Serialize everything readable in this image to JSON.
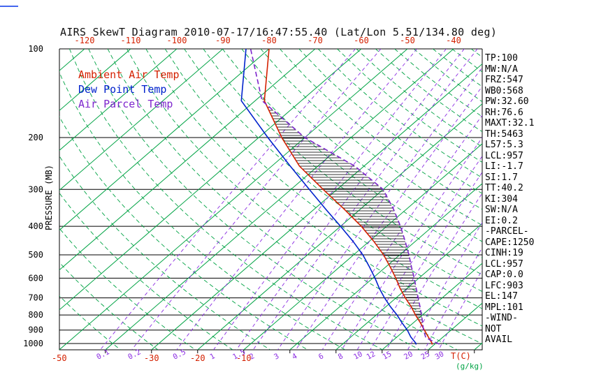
{
  "title": "AIRS SkewT Diagram 2010-07-17/16:47:55.40 (Lat/Lon 5.51/134.80 deg)",
  "legend": [
    {
      "label": "Ambient Air Temp",
      "color": "#d42000"
    },
    {
      "label": "Dew Point Temp",
      "color": "#0022cc"
    },
    {
      "label": "Air Parcel Temp",
      "color": "#7d26cd"
    }
  ],
  "axes": {
    "pressure_label": "PRESSURE (MB)",
    "pressure_ticks": [
      100,
      200,
      300,
      400,
      500,
      600,
      700,
      800,
      900,
      1000
    ],
    "top_temp_ticks": [
      -120,
      -110,
      -100,
      -90,
      -80,
      -70,
      -60,
      -50,
      -40
    ],
    "bottom_temp_ticks": [
      -50,
      -30,
      -20,
      -10
    ],
    "temp_unit_label": "T(C)",
    "mixing_unit_label": "(g/kg)",
    "mixing_ratio_values": [
      0.1,
      0.2,
      0.5,
      1,
      1.5,
      2,
      3,
      4,
      6,
      8,
      10,
      12,
      15,
      20,
      25,
      30
    ]
  },
  "colors": {
    "isotherm": "#00a344",
    "dry_adiabat": "#00a344",
    "mixing": "#8a2be2",
    "axis": "#000000",
    "top_labels": "#d42000",
    "background": "#ffffff"
  },
  "chart_data": {
    "type": "skewt-log-p",
    "pressure_range_mb": [
      100,
      1050
    ],
    "isotherms_c": {
      "start": -120,
      "end": 40,
      "step": 10
    },
    "dry_adiabats_theta_c": {
      "start": -40,
      "end": 200,
      "step": 8
    },
    "cape_hatch_between_mb": [
      903,
      147
    ],
    "series": [
      {
        "name": "Ambient Air Temp",
        "color": "#d42000",
        "style": "solid",
        "points_p_t": [
          [
            1008,
            29.5
          ],
          [
            1000,
            29.3
          ],
          [
            950,
            26.8
          ],
          [
            900,
            24.2
          ],
          [
            850,
            21.5
          ],
          [
            800,
            18.5
          ],
          [
            750,
            15.5
          ],
          [
            700,
            12
          ],
          [
            650,
            8.5
          ],
          [
            600,
            5
          ],
          [
            550,
            1
          ],
          [
            500,
            -3.5
          ],
          [
            450,
            -9
          ],
          [
            400,
            -15.5
          ],
          [
            350,
            -23.5
          ],
          [
            300,
            -33
          ],
          [
            250,
            -44
          ],
          [
            200,
            -55
          ],
          [
            150,
            -68
          ],
          [
            100,
            -80
          ]
        ]
      },
      {
        "name": "Dew Point Temp",
        "color": "#0022cc",
        "style": "solid",
        "points_p_t": [
          [
            1008,
            26
          ],
          [
            1000,
            25.8
          ],
          [
            950,
            23
          ],
          [
            900,
            20.5
          ],
          [
            850,
            17.5
          ],
          [
            800,
            14.5
          ],
          [
            750,
            11
          ],
          [
            700,
            7.5
          ],
          [
            650,
            4
          ],
          [
            600,
            0.5
          ],
          [
            550,
            -3.5
          ],
          [
            500,
            -8
          ],
          [
            450,
            -13.5
          ],
          [
            400,
            -20
          ],
          [
            350,
            -27.5
          ],
          [
            300,
            -36
          ],
          [
            250,
            -46
          ],
          [
            200,
            -58
          ],
          [
            150,
            -73
          ],
          [
            100,
            -85
          ]
        ]
      },
      {
        "name": "Air Parcel Temp",
        "color": "#7d26cd",
        "style": "dashed",
        "points_p_t": [
          [
            1005,
            31
          ],
          [
            957,
            26.5
          ],
          [
            900,
            24
          ],
          [
            850,
            22
          ],
          [
            800,
            19.8
          ],
          [
            750,
            17.4
          ],
          [
            700,
            14.8
          ],
          [
            650,
            12
          ],
          [
            600,
            9
          ],
          [
            550,
            5.6
          ],
          [
            500,
            2
          ],
          [
            450,
            -2.2
          ],
          [
            400,
            -7
          ],
          [
            350,
            -12.8
          ],
          [
            300,
            -20
          ],
          [
            250,
            -32
          ],
          [
            200,
            -50
          ],
          [
            150,
            -68.5
          ],
          [
            100,
            -84
          ]
        ]
      }
    ]
  },
  "stats_panel": {
    "lines": [
      "TP:100",
      "MW:N/A",
      "FRZ:547",
      "WB0:568",
      "PW:32.60",
      "RH:76.6",
      "MAXT:32.1",
      "TH:5463",
      "L57:5.3",
      "LCL:957",
      "LI:-1.7",
      "SI:1.7",
      "TT:40.2",
      "KI:304",
      "SW:N/A",
      "EI:0.2",
      "-PARCEL-",
      "CAPE:1250",
      "CINH:19",
      "LCL:957",
      "CAP:0.0",
      "LFC:903",
      "EL:147",
      "MPL:101",
      "-WIND-",
      "NOT",
      "AVAIL"
    ]
  }
}
